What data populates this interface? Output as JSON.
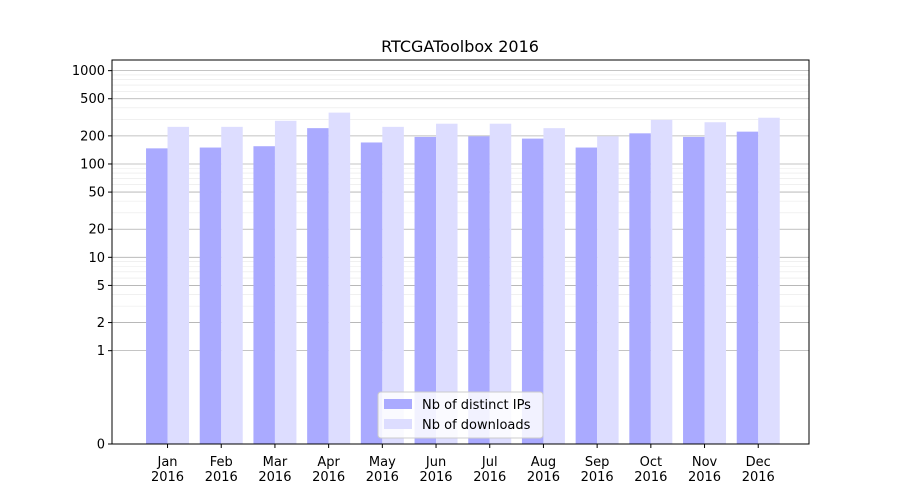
{
  "chart_data": {
    "type": "bar",
    "title": "RTCGAToolbox 2016",
    "xlabel": "",
    "ylabel": "",
    "yscale": "symlog",
    "ylim": [
      0,
      1300
    ],
    "grid": true,
    "legend_position": "lower-center",
    "categories": [
      "Jan\n2016",
      "Feb\n2016",
      "Mar\n2016",
      "Apr\n2016",
      "May\n2016",
      "Jun\n2016",
      "Jul\n2016",
      "Aug\n2016",
      "Sep\n2016",
      "Oct\n2016",
      "Nov\n2016",
      "Dec\n2016"
    ],
    "yticks": [
      0,
      1,
      2,
      5,
      10,
      20,
      50,
      100,
      200,
      500,
      1000
    ],
    "ytick_labels": [
      "0",
      "1",
      "2",
      "5",
      "10",
      "20",
      "50",
      "100",
      "200",
      "500",
      "1000"
    ],
    "series": [
      {
        "name": "Nb of distinct IPs",
        "color": "#aaaaff",
        "values": [
          147,
          150,
          155,
          242,
          170,
          195,
          198,
          187,
          150,
          213,
          195,
          222
        ]
      },
      {
        "name": "Nb of downloads",
        "color": "#ddddff",
        "values": [
          250,
          250,
          290,
          355,
          250,
          270,
          270,
          242,
          198,
          297,
          280,
          313
        ]
      }
    ]
  }
}
